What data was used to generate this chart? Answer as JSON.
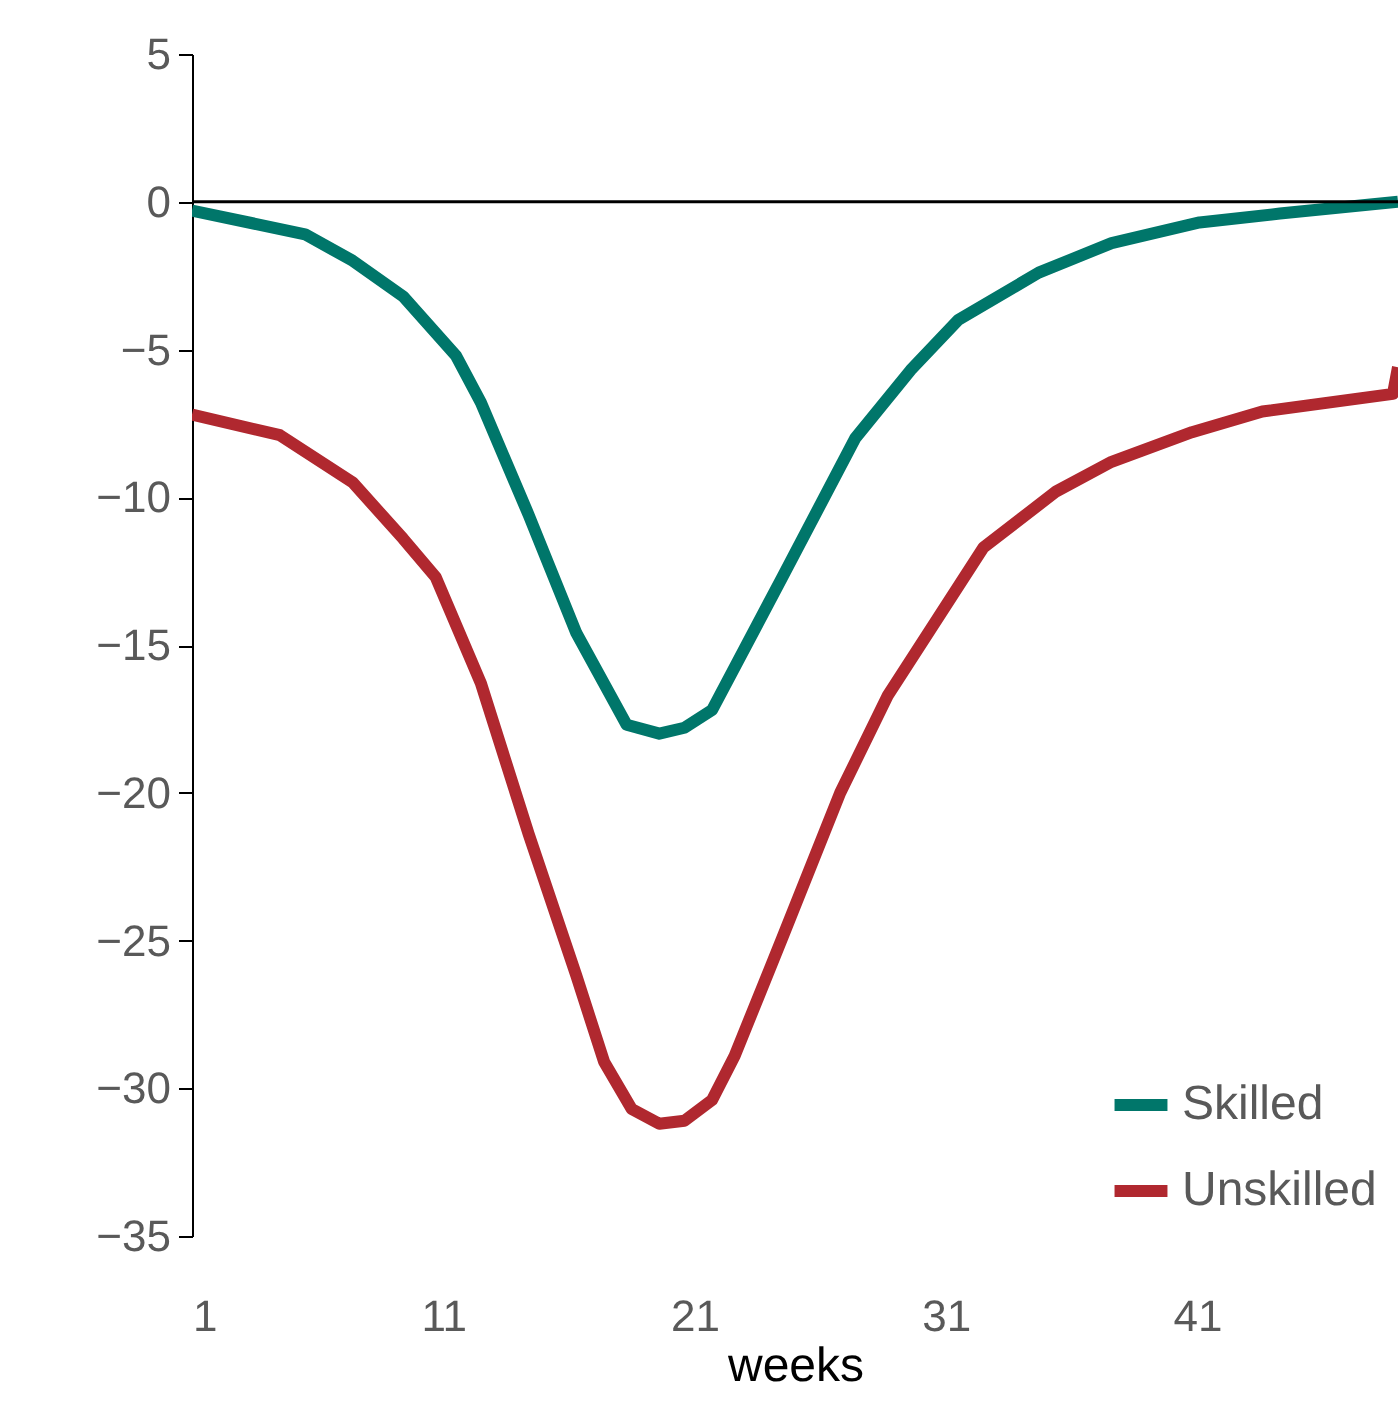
{
  "chart_data": {
    "type": "line",
    "xlabel": "weeks",
    "xlim": [
      1,
      49
    ],
    "xticks": [
      1,
      11,
      21,
      31,
      41
    ],
    "ylim": [
      -35,
      5
    ],
    "yticks": [
      5,
      0,
      -5,
      -10,
      -15,
      -20,
      -25,
      -30,
      -35
    ],
    "grid": false,
    "legend": "bottom right",
    "marker": "none",
    "line_style": "solid",
    "ref_lines": [
      {
        "axis": "y",
        "value": 0,
        "color": "#000000"
      }
    ],
    "series": [
      {
        "name": "Skilled",
        "color": "#00766a",
        "x": [
          1,
          5.5,
          7.4,
          9.4,
          11.5,
          12.5,
          14.4,
          16.3,
          18.3,
          19.6,
          20.6,
          21.7,
          24.5,
          27.4,
          29.6,
          31.5,
          34.7,
          37.6,
          41.1,
          44.3,
          49
        ],
        "values": [
          -0.3,
          -1.1,
          -2.0,
          -3.2,
          -5.2,
          -6.8,
          -10.6,
          -14.6,
          -17.7,
          -18.0,
          -17.8,
          -17.2,
          -12.7,
          -8.0,
          -5.7,
          -4.0,
          -2.4,
          -1.4,
          -0.7,
          -0.4,
          0
        ]
      },
      {
        "name": "Unskilled",
        "color": "#b0282f",
        "x": [
          1,
          4.5,
          7.4,
          9.4,
          10.7,
          12.5,
          14.4,
          16.3,
          17.4,
          18.5,
          19.6,
          20.6,
          21.7,
          22.6,
          24.5,
          26.8,
          28.7,
          32.5,
          35.4,
          37.6,
          40.8,
          43.6,
          48.8,
          49
        ],
        "values": [
          -7.2,
          -7.9,
          -9.5,
          -11.4,
          -12.7,
          -16.3,
          -21.4,
          -26.2,
          -29.1,
          -30.7,
          -31.2,
          -31.1,
          -30.4,
          -28.9,
          -24.9,
          -20.0,
          -16.7,
          -11.7,
          -9.8,
          -8.8,
          -7.8,
          -7.1,
          -6.5,
          -5.6
        ]
      }
    ]
  }
}
